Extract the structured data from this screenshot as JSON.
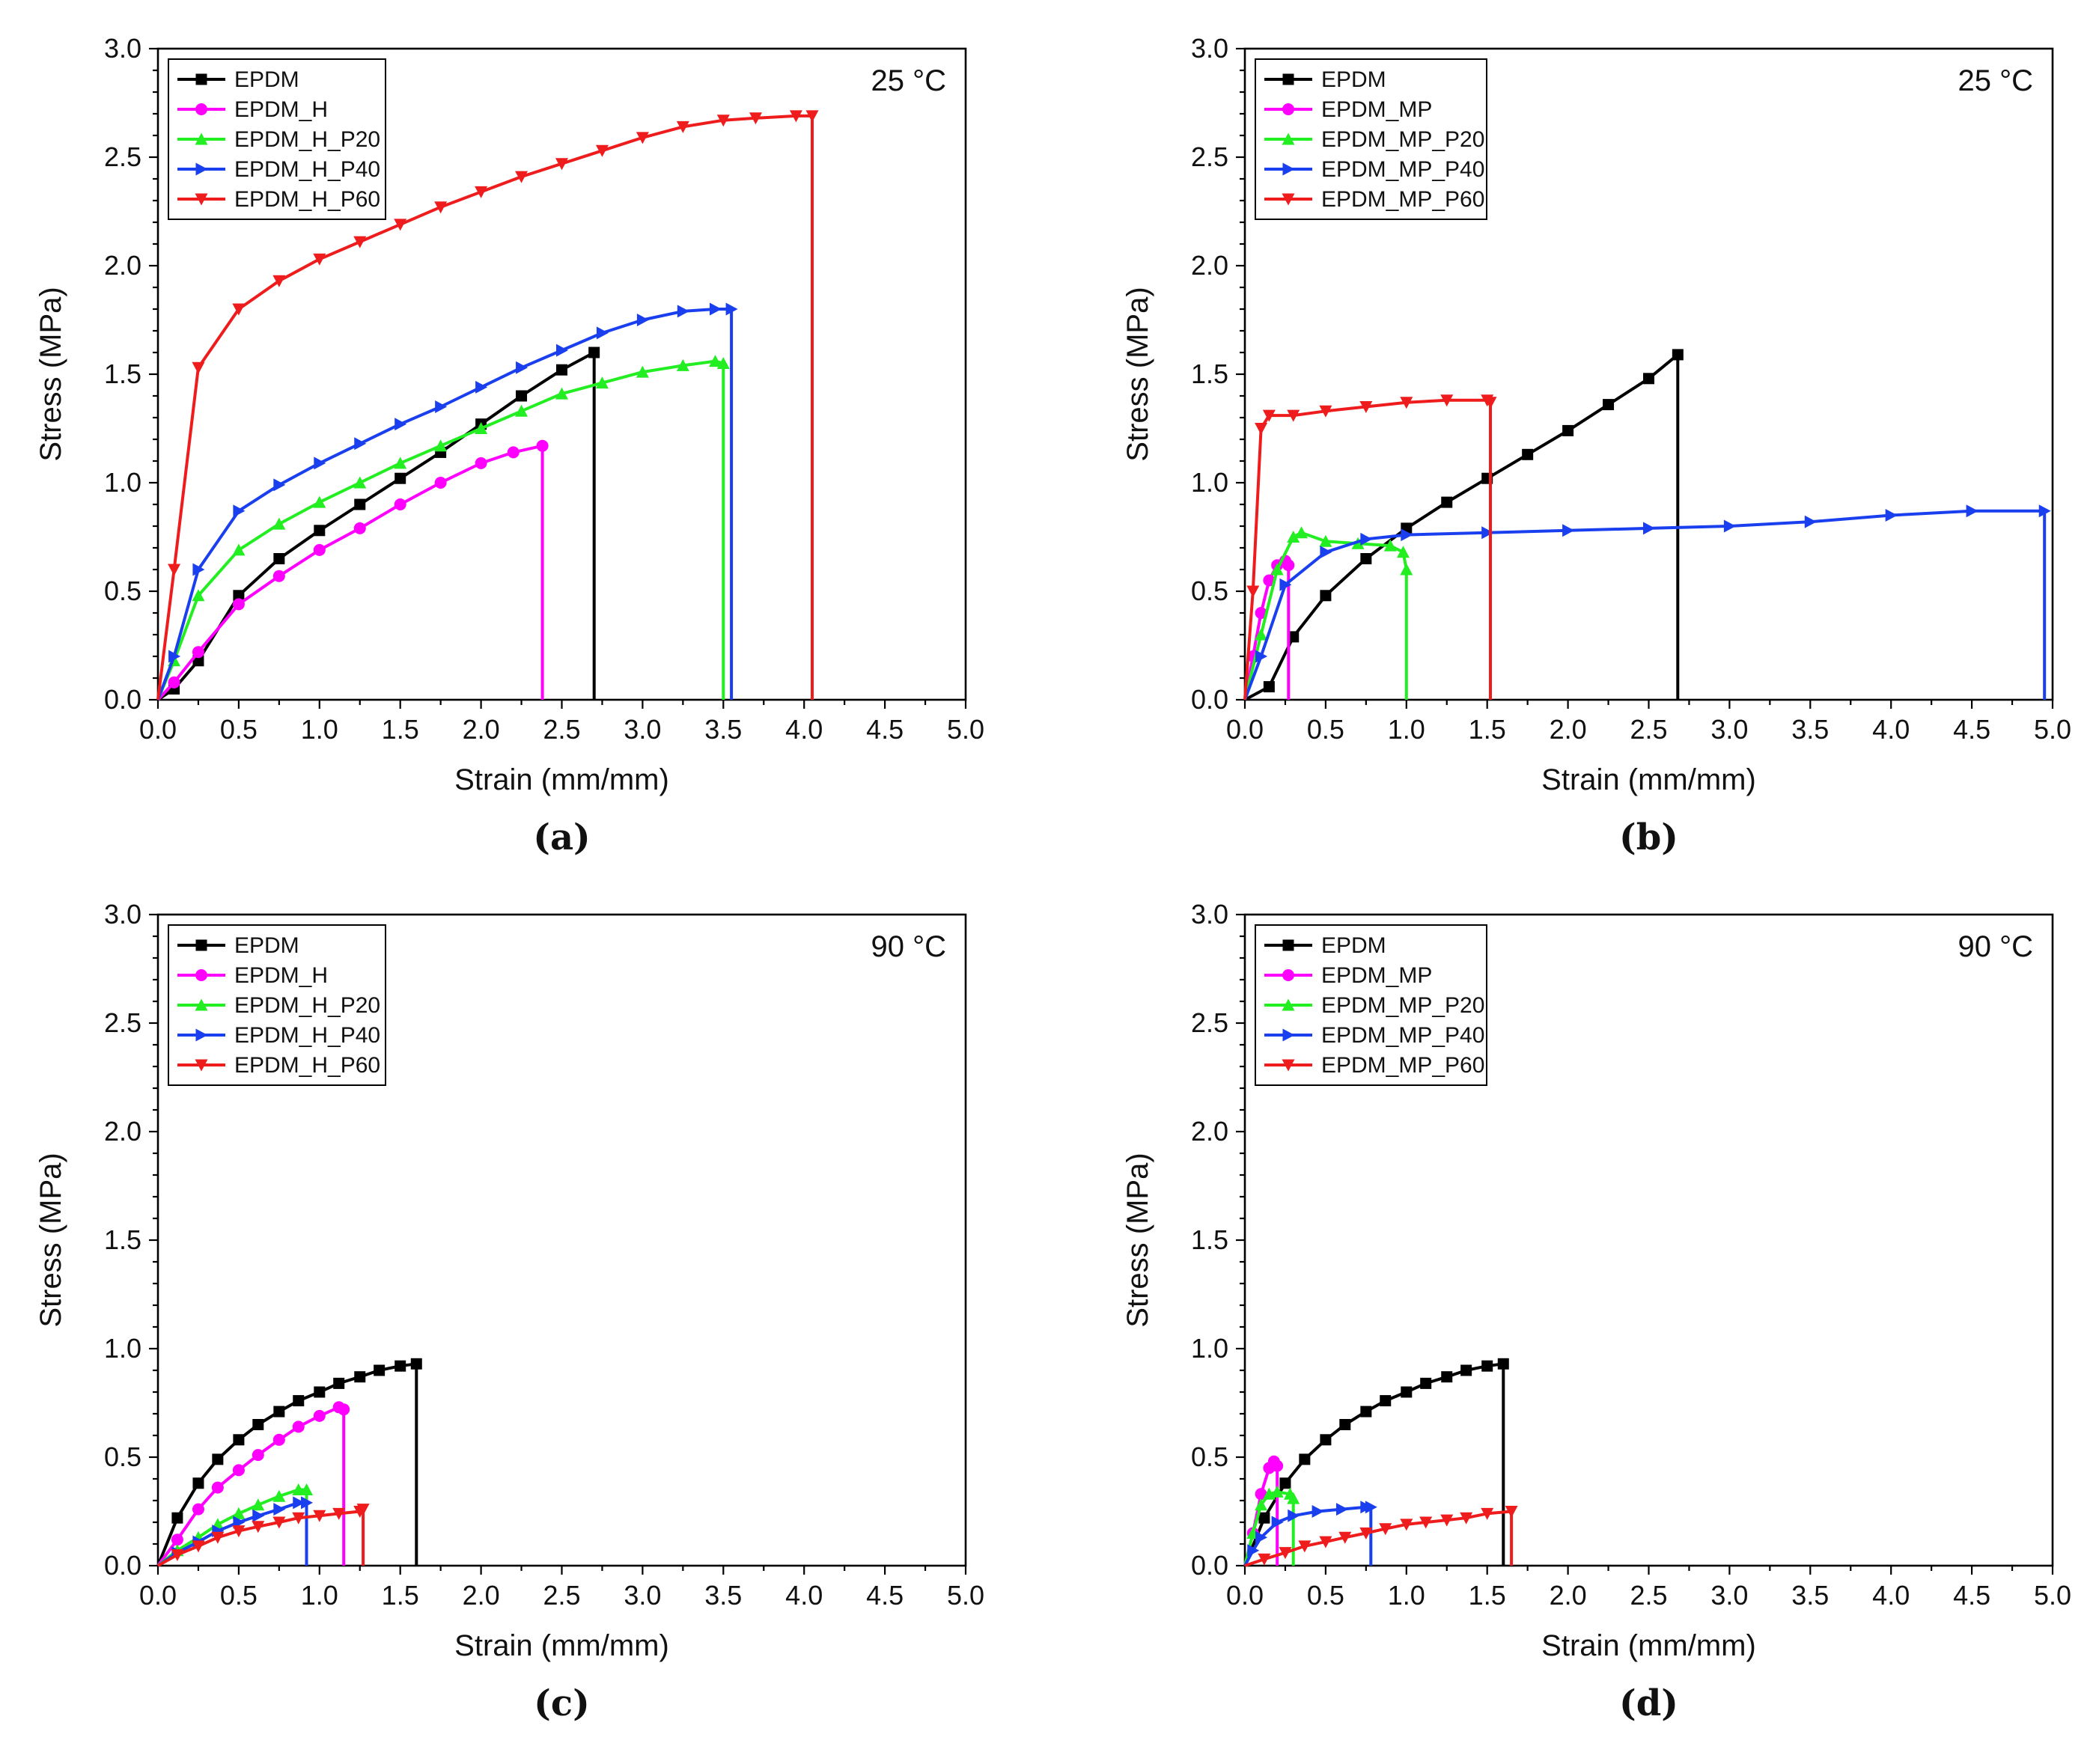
{
  "chart_data": [
    {
      "panel_label": "(a)",
      "type": "line",
      "title": "",
      "annotation": "25 °C",
      "xlabel": "Strain (mm/mm)",
      "ylabel": "Stress (MPa)",
      "xlim": [
        0,
        5
      ],
      "ylim": [
        0,
        3
      ],
      "x_ticks": [
        "0.0",
        "0.5",
        "1.0",
        "1.5",
        "2.0",
        "2.5",
        "3.0",
        "3.5",
        "4.0",
        "4.5",
        "5.0"
      ],
      "y_ticks": [
        "0.0",
        "0.5",
        "1.0",
        "1.5",
        "2.0",
        "2.5",
        "3.0"
      ],
      "legend_position": "top-left",
      "series": [
        {
          "name": "EPDM",
          "color": "#000000",
          "marker": "square",
          "x": [
            0,
            0.1,
            0.25,
            0.5,
            0.75,
            1.0,
            1.25,
            1.5,
            1.75,
            2.0,
            2.25,
            2.5,
            2.7,
            2.7
          ],
          "y": [
            0,
            0.05,
            0.18,
            0.48,
            0.65,
            0.78,
            0.9,
            1.02,
            1.14,
            1.27,
            1.4,
            1.52,
            1.6,
            0
          ]
        },
        {
          "name": "EPDM_H",
          "color": "#ff00ff",
          "marker": "circle",
          "x": [
            0,
            0.1,
            0.25,
            0.5,
            0.75,
            1.0,
            1.25,
            1.5,
            1.75,
            2.0,
            2.2,
            2.38,
            2.38
          ],
          "y": [
            0,
            0.08,
            0.22,
            0.44,
            0.57,
            0.69,
            0.79,
            0.9,
            1.0,
            1.09,
            1.14,
            1.17,
            0
          ]
        },
        {
          "name": "EPDM_H_P20",
          "color": "#22ee22",
          "marker": "triangle-up",
          "x": [
            0,
            0.1,
            0.25,
            0.5,
            0.75,
            1.0,
            1.25,
            1.5,
            1.75,
            2.0,
            2.25,
            2.5,
            2.75,
            3.0,
            3.25,
            3.45,
            3.5,
            3.5
          ],
          "y": [
            0,
            0.18,
            0.48,
            0.69,
            0.81,
            0.91,
            1.0,
            1.09,
            1.17,
            1.25,
            1.33,
            1.41,
            1.46,
            1.51,
            1.54,
            1.56,
            1.55,
            0
          ]
        },
        {
          "name": "EPDM_H_P40",
          "color": "#1a3fee",
          "marker": "triangle-right",
          "x": [
            0,
            0.1,
            0.25,
            0.5,
            0.75,
            1.0,
            1.25,
            1.5,
            1.75,
            2.0,
            2.25,
            2.5,
            2.75,
            3.0,
            3.25,
            3.45,
            3.55,
            3.55
          ],
          "y": [
            0,
            0.2,
            0.6,
            0.87,
            0.99,
            1.09,
            1.18,
            1.27,
            1.35,
            1.44,
            1.53,
            1.61,
            1.69,
            1.75,
            1.79,
            1.8,
            1.8,
            0
          ]
        },
        {
          "name": "EPDM_H_P60",
          "color": "#ee1c1c",
          "marker": "triangle-down",
          "x": [
            0,
            0.1,
            0.25,
            0.5,
            0.75,
            1.0,
            1.25,
            1.5,
            1.75,
            2.0,
            2.25,
            2.5,
            2.75,
            3.0,
            3.25,
            3.5,
            3.7,
            3.95,
            4.05,
            4.05
          ],
          "y": [
            0,
            0.6,
            1.53,
            1.8,
            1.93,
            2.03,
            2.11,
            2.19,
            2.27,
            2.34,
            2.41,
            2.47,
            2.53,
            2.59,
            2.64,
            2.67,
            2.68,
            2.69,
            2.69,
            0
          ]
        }
      ]
    },
    {
      "panel_label": "(b)",
      "type": "line",
      "title": "",
      "annotation": "25 °C",
      "xlabel": "Strain (mm/mm)",
      "ylabel": "Stress (MPa)",
      "xlim": [
        0,
        5
      ],
      "ylim": [
        0,
        3
      ],
      "x_ticks": [
        "0.0",
        "0.5",
        "1.0",
        "1.5",
        "2.0",
        "2.5",
        "3.0",
        "3.5",
        "4.0",
        "4.5",
        "5.0"
      ],
      "y_ticks": [
        "0.0",
        "0.5",
        "1.0",
        "1.5",
        "2.0",
        "2.5",
        "3.0"
      ],
      "legend_position": "top-left",
      "series": [
        {
          "name": "EPDM",
          "color": "#000000",
          "marker": "square",
          "x": [
            0,
            0.15,
            0.3,
            0.5,
            0.75,
            1.0,
            1.25,
            1.5,
            1.75,
            2.0,
            2.25,
            2.5,
            2.68,
            2.68
          ],
          "y": [
            0,
            0.06,
            0.29,
            0.48,
            0.65,
            0.79,
            0.91,
            1.02,
            1.13,
            1.24,
            1.36,
            1.48,
            1.59,
            0
          ]
        },
        {
          "name": "EPDM_MP",
          "color": "#ff00ff",
          "marker": "circle",
          "x": [
            0,
            0.05,
            0.1,
            0.15,
            0.2,
            0.25,
            0.27,
            0.27
          ],
          "y": [
            0,
            0.2,
            0.4,
            0.55,
            0.62,
            0.64,
            0.62,
            0
          ]
        },
        {
          "name": "EPDM_MP_P20",
          "color": "#22ee22",
          "marker": "triangle-up",
          "x": [
            0,
            0.1,
            0.2,
            0.3,
            0.35,
            0.5,
            0.7,
            0.9,
            0.98,
            1.0,
            1.0
          ],
          "y": [
            0,
            0.3,
            0.6,
            0.75,
            0.77,
            0.73,
            0.72,
            0.71,
            0.68,
            0.6,
            0
          ]
        },
        {
          "name": "EPDM_MP_P40",
          "color": "#1a3fee",
          "marker": "triangle-right",
          "x": [
            0,
            0.1,
            0.25,
            0.5,
            0.75,
            1.0,
            1.5,
            2.0,
            2.5,
            3.0,
            3.5,
            4.0,
            4.5,
            4.95,
            4.95
          ],
          "y": [
            0,
            0.2,
            0.53,
            0.68,
            0.74,
            0.76,
            0.77,
            0.78,
            0.79,
            0.8,
            0.82,
            0.85,
            0.87,
            0.87,
            0
          ]
        },
        {
          "name": "EPDM_MP_P60",
          "color": "#ee1c1c",
          "marker": "triangle-down",
          "x": [
            0,
            0.05,
            0.1,
            0.15,
            0.3,
            0.5,
            0.75,
            1.0,
            1.25,
            1.5,
            1.52,
            1.52
          ],
          "y": [
            0,
            0.5,
            1.25,
            1.31,
            1.31,
            1.33,
            1.35,
            1.37,
            1.38,
            1.38,
            1.37,
            0
          ]
        }
      ]
    },
    {
      "panel_label": "(c)",
      "type": "line",
      "title": "",
      "annotation": "90 °C",
      "xlabel": "Strain (mm/mm)",
      "ylabel": "Stress (MPa)",
      "xlim": [
        0,
        5
      ],
      "ylim": [
        0,
        3
      ],
      "x_ticks": [
        "0.0",
        "0.5",
        "1.0",
        "1.5",
        "2.0",
        "2.5",
        "3.0",
        "3.5",
        "4.0",
        "4.5",
        "5.0"
      ],
      "y_ticks": [
        "0.0",
        "0.5",
        "1.0",
        "1.5",
        "2.0",
        "2.5",
        "3.0"
      ],
      "legend_position": "top-left",
      "series": [
        {
          "name": "EPDM",
          "color": "#000000",
          "marker": "square",
          "x": [
            0,
            0.12,
            0.25,
            0.37,
            0.5,
            0.62,
            0.75,
            0.87,
            1.0,
            1.12,
            1.25,
            1.37,
            1.5,
            1.6,
            1.6
          ],
          "y": [
            0,
            0.22,
            0.38,
            0.49,
            0.58,
            0.65,
            0.71,
            0.76,
            0.8,
            0.84,
            0.87,
            0.9,
            0.92,
            0.93,
            0
          ]
        },
        {
          "name": "EPDM_H",
          "color": "#ff00ff",
          "marker": "circle",
          "x": [
            0,
            0.12,
            0.25,
            0.37,
            0.5,
            0.62,
            0.75,
            0.87,
            1.0,
            1.12,
            1.15,
            1.15
          ],
          "y": [
            0,
            0.12,
            0.26,
            0.36,
            0.44,
            0.51,
            0.58,
            0.64,
            0.69,
            0.73,
            0.72,
            0
          ]
        },
        {
          "name": "EPDM_H_P20",
          "color": "#22ee22",
          "marker": "triangle-up",
          "x": [
            0,
            0.12,
            0.25,
            0.37,
            0.5,
            0.62,
            0.75,
            0.87,
            0.92,
            0.92
          ],
          "y": [
            0,
            0.07,
            0.13,
            0.19,
            0.24,
            0.28,
            0.32,
            0.35,
            0.35,
            0
          ]
        },
        {
          "name": "EPDM_H_P40",
          "color": "#1a3fee",
          "marker": "triangle-right",
          "x": [
            0,
            0.12,
            0.25,
            0.37,
            0.5,
            0.62,
            0.75,
            0.87,
            0.92,
            0.92
          ],
          "y": [
            0,
            0.06,
            0.11,
            0.16,
            0.2,
            0.23,
            0.26,
            0.29,
            0.29,
            0
          ]
        },
        {
          "name": "EPDM_H_P60",
          "color": "#ee1c1c",
          "marker": "triangle-down",
          "x": [
            0,
            0.12,
            0.25,
            0.37,
            0.5,
            0.62,
            0.75,
            0.87,
            1.0,
            1.12,
            1.25,
            1.27,
            1.27
          ],
          "y": [
            0,
            0.05,
            0.09,
            0.13,
            0.16,
            0.18,
            0.2,
            0.22,
            0.23,
            0.24,
            0.25,
            0.26,
            0
          ]
        }
      ]
    },
    {
      "panel_label": "(d)",
      "type": "line",
      "title": "",
      "annotation": "90 °C",
      "xlabel": "Strain (mm/mm)",
      "ylabel": "Stress (MPa)",
      "xlim": [
        0,
        5
      ],
      "ylim": [
        0,
        3
      ],
      "x_ticks": [
        "0.0",
        "0.5",
        "1.0",
        "1.5",
        "2.0",
        "2.5",
        "3.0",
        "3.5",
        "4.0",
        "4.5",
        "5.0"
      ],
      "y_ticks": [
        "0.0",
        "0.5",
        "1.0",
        "1.5",
        "2.0",
        "2.5",
        "3.0"
      ],
      "legend_position": "top-left",
      "series": [
        {
          "name": "EPDM",
          "color": "#000000",
          "marker": "square",
          "x": [
            0,
            0.12,
            0.25,
            0.37,
            0.5,
            0.62,
            0.75,
            0.87,
            1.0,
            1.12,
            1.25,
            1.37,
            1.5,
            1.6,
            1.6
          ],
          "y": [
            0,
            0.22,
            0.38,
            0.49,
            0.58,
            0.65,
            0.71,
            0.76,
            0.8,
            0.84,
            0.87,
            0.9,
            0.92,
            0.93,
            0
          ]
        },
        {
          "name": "EPDM_MP",
          "color": "#ff00ff",
          "marker": "circle",
          "x": [
            0,
            0.05,
            0.1,
            0.15,
            0.18,
            0.2,
            0.2
          ],
          "y": [
            0,
            0.15,
            0.33,
            0.45,
            0.48,
            0.46,
            0
          ]
        },
        {
          "name": "EPDM_MP_P20",
          "color": "#22ee22",
          "marker": "triangle-up",
          "x": [
            0,
            0.05,
            0.1,
            0.15,
            0.2,
            0.28,
            0.3,
            0.3
          ],
          "y": [
            0,
            0.15,
            0.28,
            0.33,
            0.34,
            0.33,
            0.31,
            0
          ]
        },
        {
          "name": "EPDM_MP_P40",
          "color": "#1a3fee",
          "marker": "triangle-right",
          "x": [
            0,
            0.05,
            0.1,
            0.2,
            0.3,
            0.45,
            0.6,
            0.75,
            0.78,
            0.78
          ],
          "y": [
            0,
            0.07,
            0.13,
            0.2,
            0.23,
            0.25,
            0.26,
            0.27,
            0.27,
            0
          ]
        },
        {
          "name": "EPDM_MP_P60",
          "color": "#ee1c1c",
          "marker": "triangle-down",
          "x": [
            0,
            0.12,
            0.25,
            0.37,
            0.5,
            0.62,
            0.75,
            0.87,
            1.0,
            1.12,
            1.25,
            1.37,
            1.5,
            1.65,
            1.65
          ],
          "y": [
            0,
            0.03,
            0.06,
            0.09,
            0.11,
            0.13,
            0.15,
            0.17,
            0.19,
            0.2,
            0.21,
            0.22,
            0.24,
            0.25,
            0
          ]
        }
      ]
    }
  ]
}
